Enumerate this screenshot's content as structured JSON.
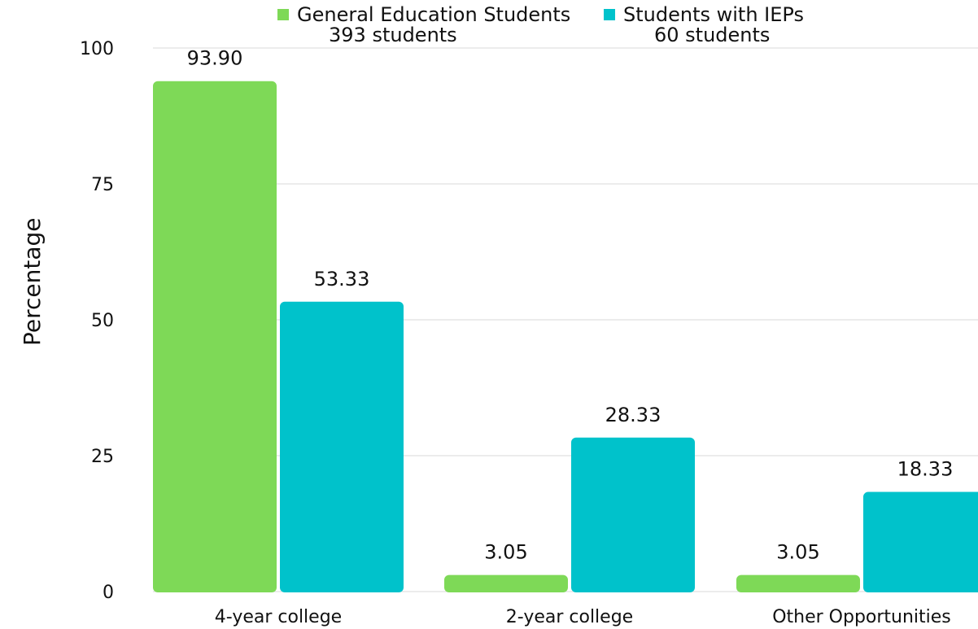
{
  "chart_data": {
    "type": "bar",
    "title": "",
    "xlabel": "",
    "ylabel": "Percentage",
    "ylim": [
      0,
      100
    ],
    "yticks": [
      0,
      25,
      50,
      75,
      100
    ],
    "categories": [
      "4-year college",
      "2-year college",
      "Other Opportunities"
    ],
    "series": [
      {
        "name": "General Education Students",
        "subtitle": "393 students",
        "color": "#7ED957",
        "values": [
          93.9,
          3.05,
          3.05
        ],
        "labels": [
          "93.90",
          "3.05",
          "3.05"
        ]
      },
      {
        "name": "Students with IEPs",
        "subtitle": "60 students",
        "color": "#00C2CB",
        "values": [
          53.33,
          28.33,
          18.33
        ],
        "labels": [
          "53.33",
          "28.33",
          "18.33"
        ]
      }
    ],
    "grid": true,
    "legend": "top-center"
  }
}
